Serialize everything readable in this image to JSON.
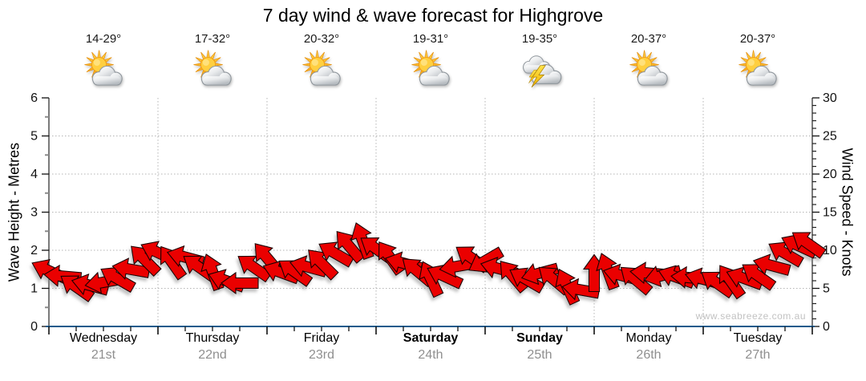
{
  "title": "7 day wind & wave forecast for Highgrove",
  "watermark": "www.seabreeze.com.au",
  "axes": {
    "left": {
      "title": "Wave Height - Metres",
      "range": [
        0,
        6
      ],
      "major_ticks": [
        0,
        1,
        2,
        3,
        4,
        5,
        6
      ],
      "minor_step": 0.5
    },
    "right": {
      "title": "Wind Speed - Knots",
      "range": [
        0,
        30
      ],
      "major_ticks": [
        0,
        5,
        10,
        15,
        20,
        25,
        30
      ],
      "minor_step": 1
    },
    "bottom_minor_ticks_per_day": 4
  },
  "days": [
    {
      "name": "Wednesday",
      "date": "21st",
      "temps": "14-29°",
      "icon": "partly-cloudy",
      "bold": false
    },
    {
      "name": "Thursday",
      "date": "22nd",
      "temps": "17-32°",
      "icon": "partly-cloudy",
      "bold": false
    },
    {
      "name": "Friday",
      "date": "23rd",
      "temps": "20-32°",
      "icon": "partly-cloudy",
      "bold": false
    },
    {
      "name": "Saturday",
      "date": "24th",
      "temps": "19-31°",
      "icon": "partly-cloudy",
      "bold": true
    },
    {
      "name": "Sunday",
      "date": "25th",
      "temps": "19-35°",
      "icon": "thunderstorm",
      "bold": true
    },
    {
      "name": "Monday",
      "date": "26th",
      "temps": "20-37°",
      "icon": "partly-cloudy",
      "bold": false
    },
    {
      "name": "Tuesday",
      "date": "27th",
      "temps": "20-37°",
      "icon": "partly-cloudy",
      "bold": false
    }
  ],
  "colors": {
    "arrow_fill": "#ea0505",
    "arrow_stroke": "#1c0000",
    "axis_side": "#333333",
    "axis_bottom": "#1a5b8c",
    "grid": "#b5b5b5",
    "tick_minor": "#8a8a8a",
    "date_text": "#8f8f8f",
    "watermark_text": "#c2c2c2"
  },
  "chart_data": {
    "type": "wind-arrow-series",
    "title": "7 day wind & wave forecast for Highgrove",
    "x_categories": [
      "Wednesday 21st",
      "Thursday 22nd",
      "Friday 23rd",
      "Saturday 24th",
      "Sunday 25th",
      "Monday 26th",
      "Tuesday 27th"
    ],
    "x_unit": "hours from start of Wednesday (3-hourly samples)",
    "y_left_label": "Wave Height - Metres",
    "y_left_range": [
      0,
      6
    ],
    "y_right_label": "Wind Speed - Knots",
    "y_right_range": [
      0,
      30
    ],
    "grid": "dotted, horizontal at each metre, vertical at day boundaries",
    "legend": "none",
    "arrows_note": "each arrow: h = hour offset, kn = wind speed in knots, dir = screen rotation in degrees (0 = pointing right, 90 = pointing down)",
    "arrows": [
      {
        "h": 0,
        "kn": 7.3,
        "dir": 205
      },
      {
        "h": 3,
        "kn": 6.6,
        "dir": 185
      },
      {
        "h": 6,
        "kn": 5.2,
        "dir": 215
      },
      {
        "h": 9,
        "kn": 5.4,
        "dir": 195
      },
      {
        "h": 12,
        "kn": 5.8,
        "dir": 170
      },
      {
        "h": 15,
        "kn": 6.3,
        "dir": 210
      },
      {
        "h": 18,
        "kn": 7.5,
        "dir": 190
      },
      {
        "h": 21,
        "kn": 8.8,
        "dir": 225
      },
      {
        "h": 24,
        "kn": 9.7,
        "dir": 205
      },
      {
        "h": 27,
        "kn": 8.5,
        "dir": 235
      },
      {
        "h": 30,
        "kn": 9.1,
        "dir": 195
      },
      {
        "h": 33,
        "kn": 7.8,
        "dir": 215
      },
      {
        "h": 36,
        "kn": 7.2,
        "dir": 250
      },
      {
        "h": 39,
        "kn": 6.0,
        "dir": 200
      },
      {
        "h": 42,
        "kn": 5.7,
        "dir": 180
      },
      {
        "h": 45,
        "kn": 7.8,
        "dir": 215
      },
      {
        "h": 48,
        "kn": 9.0,
        "dir": 230
      },
      {
        "h": 51,
        "kn": 7.1,
        "dir": 200
      },
      {
        "h": 54,
        "kn": 7.2,
        "dir": 215
      },
      {
        "h": 57,
        "kn": 7.8,
        "dir": 195
      },
      {
        "h": 60,
        "kn": 8.3,
        "dir": 225
      },
      {
        "h": 63,
        "kn": 9.6,
        "dir": 210
      },
      {
        "h": 66,
        "kn": 10.6,
        "dir": 230
      },
      {
        "h": 69,
        "kn": 11.3,
        "dir": 250
      },
      {
        "h": 72,
        "kn": 10.2,
        "dir": 215
      },
      {
        "h": 75,
        "kn": 9.1,
        "dir": 235
      },
      {
        "h": 78,
        "kn": 8.3,
        "dir": 195
      },
      {
        "h": 81,
        "kn": 7.3,
        "dir": 220
      },
      {
        "h": 84,
        "kn": 6.3,
        "dir": 245
      },
      {
        "h": 87,
        "kn": 6.6,
        "dir": 205
      },
      {
        "h": 90,
        "kn": 7.9,
        "dir": 170
      },
      {
        "h": 93,
        "kn": 9.0,
        "dir": 215
      },
      {
        "h": 96,
        "kn": 8.6,
        "dir": 150
      },
      {
        "h": 99,
        "kn": 7.6,
        "dir": 195
      },
      {
        "h": 102,
        "kn": 6.7,
        "dir": 230
      },
      {
        "h": 105,
        "kn": 6.2,
        "dir": 210
      },
      {
        "h": 108,
        "kn": 7.0,
        "dir": 165
      },
      {
        "h": 111,
        "kn": 6.2,
        "dir": 220
      },
      {
        "h": 114,
        "kn": 5.3,
        "dir": 245
      },
      {
        "h": 117,
        "kn": 4.8,
        "dir": 190
      },
      {
        "h": 120,
        "kn": 7.0,
        "dir": 270
      },
      {
        "h": 123,
        "kn": 7.3,
        "dir": 250
      },
      {
        "h": 126,
        "kn": 6.7,
        "dir": 195
      },
      {
        "h": 129,
        "kn": 6.2,
        "dir": 220
      },
      {
        "h": 132,
        "kn": 7.0,
        "dir": 185
      },
      {
        "h": 135,
        "kn": 6.7,
        "dir": 165
      },
      {
        "h": 138,
        "kn": 6.5,
        "dir": 200
      },
      {
        "h": 141,
        "kn": 6.4,
        "dir": 185
      },
      {
        "h": 144,
        "kn": 6.2,
        "dir": 195
      },
      {
        "h": 147,
        "kn": 5.7,
        "dir": 215
      },
      {
        "h": 150,
        "kn": 6.0,
        "dir": 235
      },
      {
        "h": 153,
        "kn": 6.3,
        "dir": 200
      },
      {
        "h": 156,
        "kn": 6.7,
        "dir": 215
      },
      {
        "h": 159,
        "kn": 8.0,
        "dir": 195
      },
      {
        "h": 162,
        "kn": 9.6,
        "dir": 210
      },
      {
        "h": 165,
        "kn": 10.6,
        "dir": 205
      },
      {
        "h": 167,
        "kn": 10.9,
        "dir": 215
      }
    ]
  }
}
